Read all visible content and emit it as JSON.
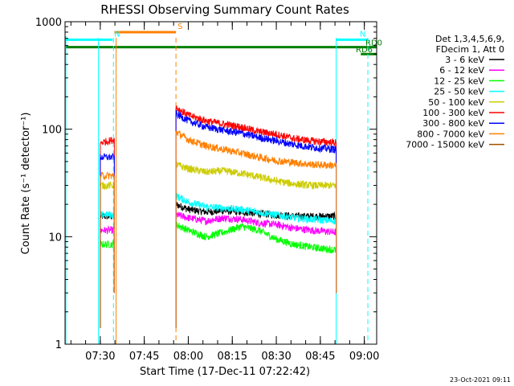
{
  "chart_data": {
    "type": "line",
    "title": "RHESSI Observing Summary Count Rates",
    "xlabel": "Start Time (17-Dec-11 07:22:42)",
    "ylabel": "Count Rate (s⁻¹ detector⁻¹)",
    "x_range_minutes": [
      7.3,
      9.07
    ],
    "x_scale": "time",
    "y_scale": "log",
    "ylim": [
      1,
      1000
    ],
    "x_ticks": [
      {
        "label": "07:30",
        "value": 7.5
      },
      {
        "label": "07:45",
        "value": 7.75
      },
      {
        "label": "08:00",
        "value": 8.0
      },
      {
        "label": "08:15",
        "value": 8.25
      },
      {
        "label": "08:30",
        "value": 8.5
      },
      {
        "label": "08:45",
        "value": 8.75
      },
      {
        "label": "09:00",
        "value": 9.0
      }
    ],
    "y_ticks": [
      {
        "label": "1",
        "value": 1
      },
      {
        "label": "10",
        "value": 10
      },
      {
        "label": "100",
        "value": 100
      },
      {
        "label": "1000",
        "value": 1000
      }
    ],
    "legend": {
      "placement": "right",
      "header": [
        "Det 1,3,4,5,6,9,",
        "FDecim 1, Att 0"
      ]
    },
    "data_gaps": [
      [
        7.33,
        7.5
      ],
      [
        7.58,
        7.93
      ],
      [
        8.84,
        9.07
      ]
    ],
    "series": [
      {
        "name": "3 - 6 keV",
        "color": "#000000",
        "x": [
          7.5,
          7.58,
          7.93,
          8.0,
          8.1,
          8.2,
          8.3,
          8.4,
          8.5,
          8.6,
          8.7,
          8.84
        ],
        "values": [
          15.5,
          15.5,
          20,
          18,
          17,
          17.5,
          17,
          16.5,
          16,
          15.5,
          15.5,
          15.5
        ]
      },
      {
        "name": "6 - 12 keV",
        "color": "#ff00ff",
        "x": [
          7.5,
          7.58,
          7.93,
          8.0,
          8.1,
          8.2,
          8.3,
          8.4,
          8.5,
          8.6,
          8.7,
          8.84
        ],
        "values": [
          11.5,
          11.5,
          16,
          15,
          14,
          15,
          14.5,
          13.5,
          13,
          12,
          11.5,
          11
        ]
      },
      {
        "name": "12 - 25 keV",
        "color": "#00ff00",
        "x": [
          7.5,
          7.58,
          7.93,
          8.0,
          8.1,
          8.2,
          8.3,
          8.4,
          8.5,
          8.6,
          8.7,
          8.84
        ],
        "values": [
          8.5,
          8.5,
          13,
          11.5,
          10,
          11,
          12.5,
          11.5,
          9.5,
          8.5,
          8,
          7.5
        ]
      },
      {
        "name": "25 - 50 keV",
        "color": "#00ffff",
        "x": [
          7.5,
          7.58,
          7.93,
          8.0,
          8.1,
          8.2,
          8.3,
          8.4,
          8.5,
          8.6,
          8.7,
          8.84
        ],
        "values": [
          16,
          16,
          24,
          21,
          19,
          18.5,
          18,
          17,
          16,
          15,
          14.5,
          14
        ]
      },
      {
        "name": "50 - 100 keV",
        "color": "#cccc00",
        "x": [
          7.5,
          7.58,
          7.93,
          8.0,
          8.1,
          8.2,
          8.3,
          8.4,
          8.5,
          8.6,
          8.7,
          8.84
        ],
        "values": [
          30,
          30,
          47,
          43,
          40,
          41,
          39,
          36,
          33,
          31,
          30,
          30
        ]
      },
      {
        "name": "100 - 300 keV",
        "color": "#ff0000",
        "x": [
          7.5,
          7.58,
          7.93,
          8.0,
          8.1,
          8.2,
          8.3,
          8.4,
          8.5,
          8.6,
          8.7,
          8.84
        ],
        "values": [
          75,
          80,
          160,
          135,
          120,
          112,
          105,
          95,
          90,
          82,
          78,
          75
        ]
      },
      {
        "name": "300 - 800 keV",
        "color": "#0000ff",
        "x": [
          7.5,
          7.58,
          7.93,
          8.0,
          8.1,
          8.2,
          8.3,
          8.4,
          8.5,
          8.6,
          8.7,
          8.84
        ],
        "values": [
          55,
          55,
          140,
          120,
          105,
          98,
          92,
          84,
          78,
          72,
          68,
          65
        ]
      },
      {
        "name": "800 - 7000 keV",
        "color": "#ff8000",
        "x": [
          7.5,
          7.58,
          7.93,
          8.0,
          8.1,
          8.2,
          8.3,
          8.4,
          8.5,
          8.6,
          8.7,
          8.84
        ],
        "values": [
          37,
          37,
          95,
          80,
          70,
          65,
          60,
          55,
          51,
          49,
          47,
          46
        ]
      },
      {
        "name": "7000 - 15000 keV",
        "color": "#a05000",
        "x": [],
        "values": []
      }
    ],
    "flags": [
      {
        "label": "S",
        "color": "#ff8000",
        "x_start": 7.58,
        "x_end": 7.93,
        "level": 800
      },
      {
        "label": "N",
        "color": "#00ffff",
        "x_start": 7.3,
        "x_end": 7.57,
        "level": 680
      },
      {
        "label": "N",
        "color": "#00ffff",
        "x_start": 8.84,
        "x_end": 9.02,
        "level": 680
      },
      {
        "label": "RD0",
        "color": "#008000",
        "x_start": 7.3,
        "x_end": 9.07,
        "level": 580
      },
      {
        "label": "RD6",
        "color": "#008000",
        "x_start": 8.98,
        "x_end": 9.07,
        "level": 500
      }
    ],
    "timestamp": "23-Oct-2021 09:11"
  }
}
